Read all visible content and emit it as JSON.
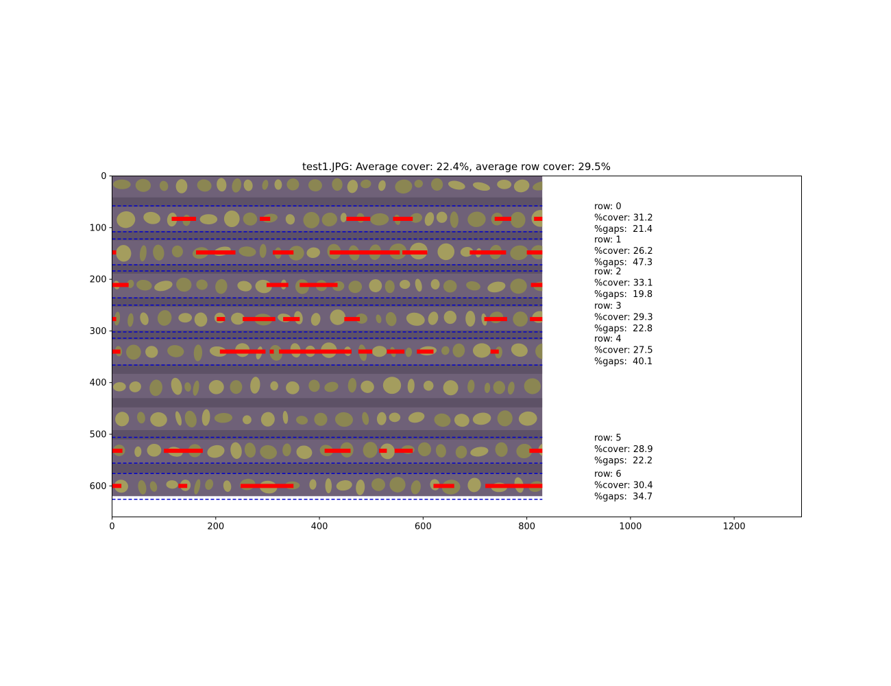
{
  "chart_data": {
    "type": "image",
    "title": "test1.JPG: Average cover: 22.4%, average row cover: 29.5%",
    "xlabel": "",
    "ylabel": "",
    "xlim": [
      0,
      1330
    ],
    "ylim": [
      660,
      0
    ],
    "y_inverted": true,
    "x_ticks": [
      0,
      200,
      400,
      600,
      800,
      1000,
      1200
    ],
    "y_ticks": [
      0,
      100,
      200,
      300,
      400,
      500,
      600
    ],
    "image_extent": {
      "x": [
        0,
        830
      ],
      "y": [
        0,
        620
      ]
    },
    "colors": {
      "soil_background": "#6f6178",
      "soil_dark": "#3d3446",
      "plant": "#8d8a4f",
      "plant_light": "#a8a35c",
      "row_boundary": "#0000cc",
      "row_segment": "#ff0000"
    },
    "plant_bands": [
      {
        "y": 18,
        "h": 26
      },
      {
        "y": 83,
        "h": 30
      },
      {
        "y": 148,
        "h": 30
      },
      {
        "y": 212,
        "h": 28
      },
      {
        "y": 276,
        "h": 28
      },
      {
        "y": 340,
        "h": 30
      },
      {
        "y": 408,
        "h": 32
      },
      {
        "y": 470,
        "h": 30
      },
      {
        "y": 532,
        "h": 30
      },
      {
        "y": 600,
        "h": 28
      }
    ],
    "rows": [
      {
        "row_label": "row: 0",
        "cover_label": "%cover: 31.2",
        "gaps_label": "%gaps:  21.4",
        "cover": 31.2,
        "gaps": 21.4,
        "bounds": [
          58,
          108
        ],
        "center": 83,
        "segments": [
          [
            115,
            162
          ],
          [
            285,
            305
          ],
          [
            452,
            498
          ],
          [
            542,
            580
          ],
          [
            738,
            770
          ],
          [
            814,
            830
          ]
        ]
      },
      {
        "row_label": "row: 1",
        "cover_label": "%cover: 26.2",
        "gaps_label": "%gaps:  47.3",
        "cover": 26.2,
        "gaps": 47.3,
        "bounds": [
          122,
          172
        ],
        "center": 148,
        "segments": [
          [
            0,
            8
          ],
          [
            162,
            238
          ],
          [
            310,
            350
          ],
          [
            420,
            555
          ],
          [
            560,
            608
          ],
          [
            690,
            760
          ],
          [
            800,
            830
          ]
        ]
      },
      {
        "row_label": "row: 2",
        "cover_label": "%cover: 33.1",
        "gaps_label": "%gaps:  19.8",
        "cover": 33.1,
        "gaps": 19.8,
        "bounds": [
          184,
          236
        ],
        "center": 211,
        "segments": [
          [
            0,
            32
          ],
          [
            298,
            340
          ],
          [
            362,
            435
          ],
          [
            808,
            830
          ]
        ]
      },
      {
        "row_label": "row: 3",
        "cover_label": "%cover: 29.3",
        "gaps_label": "%gaps:  22.8",
        "cover": 29.3,
        "gaps": 22.8,
        "bounds": [
          250,
          302
        ],
        "center": 277,
        "segments": [
          [
            0,
            8
          ],
          [
            202,
            218
          ],
          [
            252,
            315
          ],
          [
            330,
            362
          ],
          [
            448,
            478
          ],
          [
            718,
            762
          ],
          [
            806,
            830
          ]
        ]
      },
      {
        "row_label": "row: 4",
        "cover_label": "%cover: 27.5",
        "gaps_label": "%gaps:  40.1",
        "cover": 27.5,
        "gaps": 40.1,
        "bounds": [
          314,
          366
        ],
        "center": 340,
        "segments": [
          [
            0,
            16
          ],
          [
            208,
            296
          ],
          [
            304,
            312
          ],
          [
            322,
            462
          ],
          [
            475,
            502
          ],
          [
            530,
            564
          ],
          [
            588,
            620
          ],
          [
            730,
            746
          ]
        ]
      },
      {
        "row_label": "row: 5",
        "cover_label": "%cover: 28.9",
        "gaps_label": "%gaps:  22.2",
        "cover": 28.9,
        "gaps": 22.2,
        "bounds": [
          506,
          556
        ],
        "center": 532,
        "segments": [
          [
            0,
            20
          ],
          [
            100,
            175
          ],
          [
            410,
            460
          ],
          [
            515,
            530
          ],
          [
            545,
            580
          ],
          [
            805,
            830
          ]
        ]
      },
      {
        "row_label": "row: 6",
        "cover_label": "%cover: 30.4",
        "gaps_label": "%gaps:  34.7",
        "cover": 30.4,
        "gaps": 34.7,
        "bounds": [
          576,
          626
        ],
        "center": 600,
        "segments": [
          [
            0,
            18
          ],
          [
            128,
            145
          ],
          [
            248,
            350
          ],
          [
            620,
            660
          ],
          [
            720,
            830
          ]
        ]
      }
    ]
  }
}
